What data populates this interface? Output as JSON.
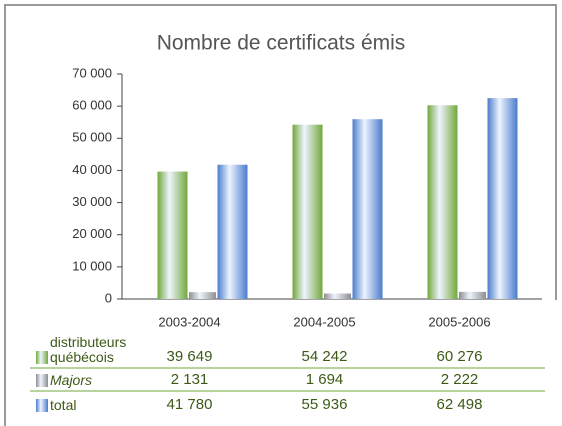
{
  "chart_data": {
    "type": "bar",
    "title": "Nombre de certificats émis",
    "categories": [
      "2003-2004",
      "2004-2005",
      "2005-2006"
    ],
    "series": [
      {
        "name": "distributeurs québécois",
        "color": "#72a83a",
        "values": [
          39649,
          54242,
          60276
        ],
        "value_labels": [
          "39 649",
          "54 242",
          "60 276"
        ]
      },
      {
        "name": "Majors",
        "color": "#8e8e8e",
        "values": [
          2131,
          1694,
          2222
        ],
        "value_labels": [
          "2 131",
          "1 694",
          "2 222"
        ]
      },
      {
        "name": "total",
        "color": "#4a7ccc",
        "values": [
          41780,
          55936,
          62498
        ],
        "value_labels": [
          "41 780",
          "55 936",
          "62 498"
        ]
      }
    ],
    "ylim": [
      0,
      70000
    ],
    "yticks": [
      0,
      {
        "value": 10000,
        "label": "10 000"
      },
      {
        "value": 20000,
        "label": "20 000"
      },
      {
        "value": 30000,
        "label": "30 000"
      },
      {
        "value": 40000,
        "label": "40 000"
      },
      {
        "value": 50000,
        "label": "50 000"
      },
      {
        "value": 60000,
        "label": "60 000"
      },
      {
        "value": 70000,
        "label": "70 000"
      }
    ]
  }
}
